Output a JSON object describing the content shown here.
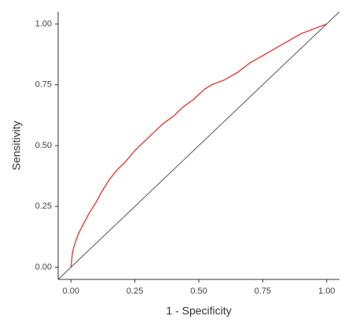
{
  "chart_data": {
    "type": "line",
    "x_label": "1 - Specificity",
    "y_label": "Sensitivity",
    "xlim": [
      -0.05,
      1.05
    ],
    "ylim": [
      -0.05,
      1.05
    ],
    "xticks": [
      {
        "value": 0,
        "label": "0.00"
      },
      {
        "value": 0.25,
        "label": "0.25"
      },
      {
        "value": 0.5,
        "label": "0.50"
      },
      {
        "value": 0.75,
        "label": "0.75"
      },
      {
        "value": 1,
        "label": "1.00"
      }
    ],
    "yticks": [
      {
        "value": 0,
        "label": "0.00"
      },
      {
        "value": 0.25,
        "label": "0.25"
      },
      {
        "value": 0.5,
        "label": "0.50"
      },
      {
        "value": 0.75,
        "label": "0.75"
      },
      {
        "value": 1,
        "label": "1.00"
      }
    ],
    "grid": false,
    "series": [
      {
        "color": "#e8302a",
        "x": [
          0,
          0.005,
          0.01,
          0.02,
          0.03,
          0.05,
          0.07,
          0.1,
          0.12,
          0.15,
          0.18,
          0.21,
          0.25,
          0.28,
          0.32,
          0.36,
          0.4,
          0.44,
          0.48,
          0.52,
          0.55,
          0.6,
          0.65,
          0.7,
          0.75,
          0.8,
          0.85,
          0.9,
          0.95,
          1
        ],
        "values": [
          0,
          0.05,
          0.08,
          0.11,
          0.14,
          0.18,
          0.22,
          0.27,
          0.31,
          0.36,
          0.4,
          0.43,
          0.48,
          0.51,
          0.55,
          0.59,
          0.62,
          0.66,
          0.69,
          0.73,
          0.75,
          0.77,
          0.8,
          0.84,
          0.87,
          0.9,
          0.93,
          0.96,
          0.98,
          1
        ]
      },
      {
        "color": "#555555",
        "x": [
          -0.05,
          1.05
        ],
        "values": [
          -0.05,
          1.05
        ]
      }
    ]
  }
}
